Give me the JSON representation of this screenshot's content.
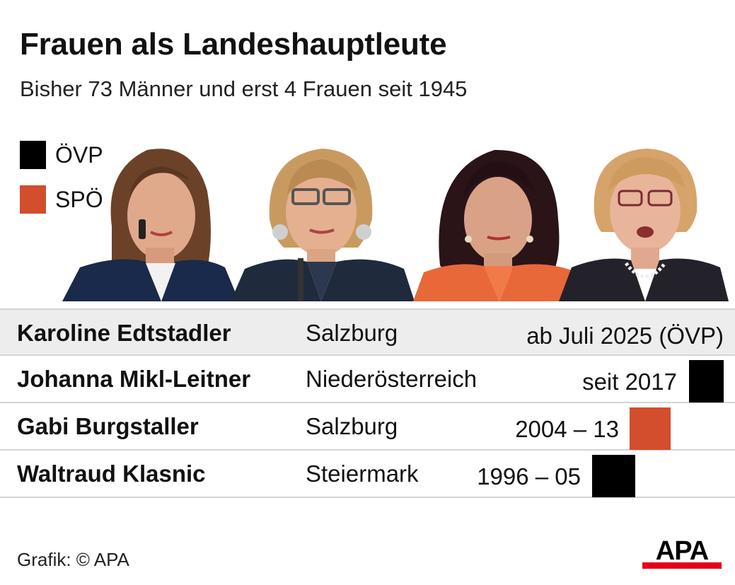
{
  "header": {
    "title": "Frauen als Landeshauptleute",
    "subtitle": "Bisher 73 Männer und erst 4 Frauen seit 1945"
  },
  "legend": [
    {
      "label": "ÖVP",
      "color": "#000000"
    },
    {
      "label": "SPÖ",
      "color": "#d24e2c"
    }
  ],
  "rows": [
    {
      "name": "Karoline Edtstadler",
      "state": "Salzburg",
      "period": "ab Juli 2025 (ÖVP)",
      "party": "ÖVP",
      "show_bar": false
    },
    {
      "name": "Johanna Mikl-Leitner",
      "state": "Niederösterreich",
      "period": "seit 2017",
      "party": "ÖVP",
      "show_bar": true
    },
    {
      "name": "Gabi Burgstaller",
      "state": "Salzburg",
      "period": "2004 – 13",
      "party": "SPÖ",
      "show_bar": true
    },
    {
      "name": "Waltraud Klasnic",
      "state": "Steiermark",
      "period": "1996 – 05",
      "party": "ÖVP",
      "show_bar": true
    }
  ],
  "footer": {
    "source": "Grafik: © APA",
    "logo_text": "APA",
    "logo_color": "#e2001a"
  }
}
